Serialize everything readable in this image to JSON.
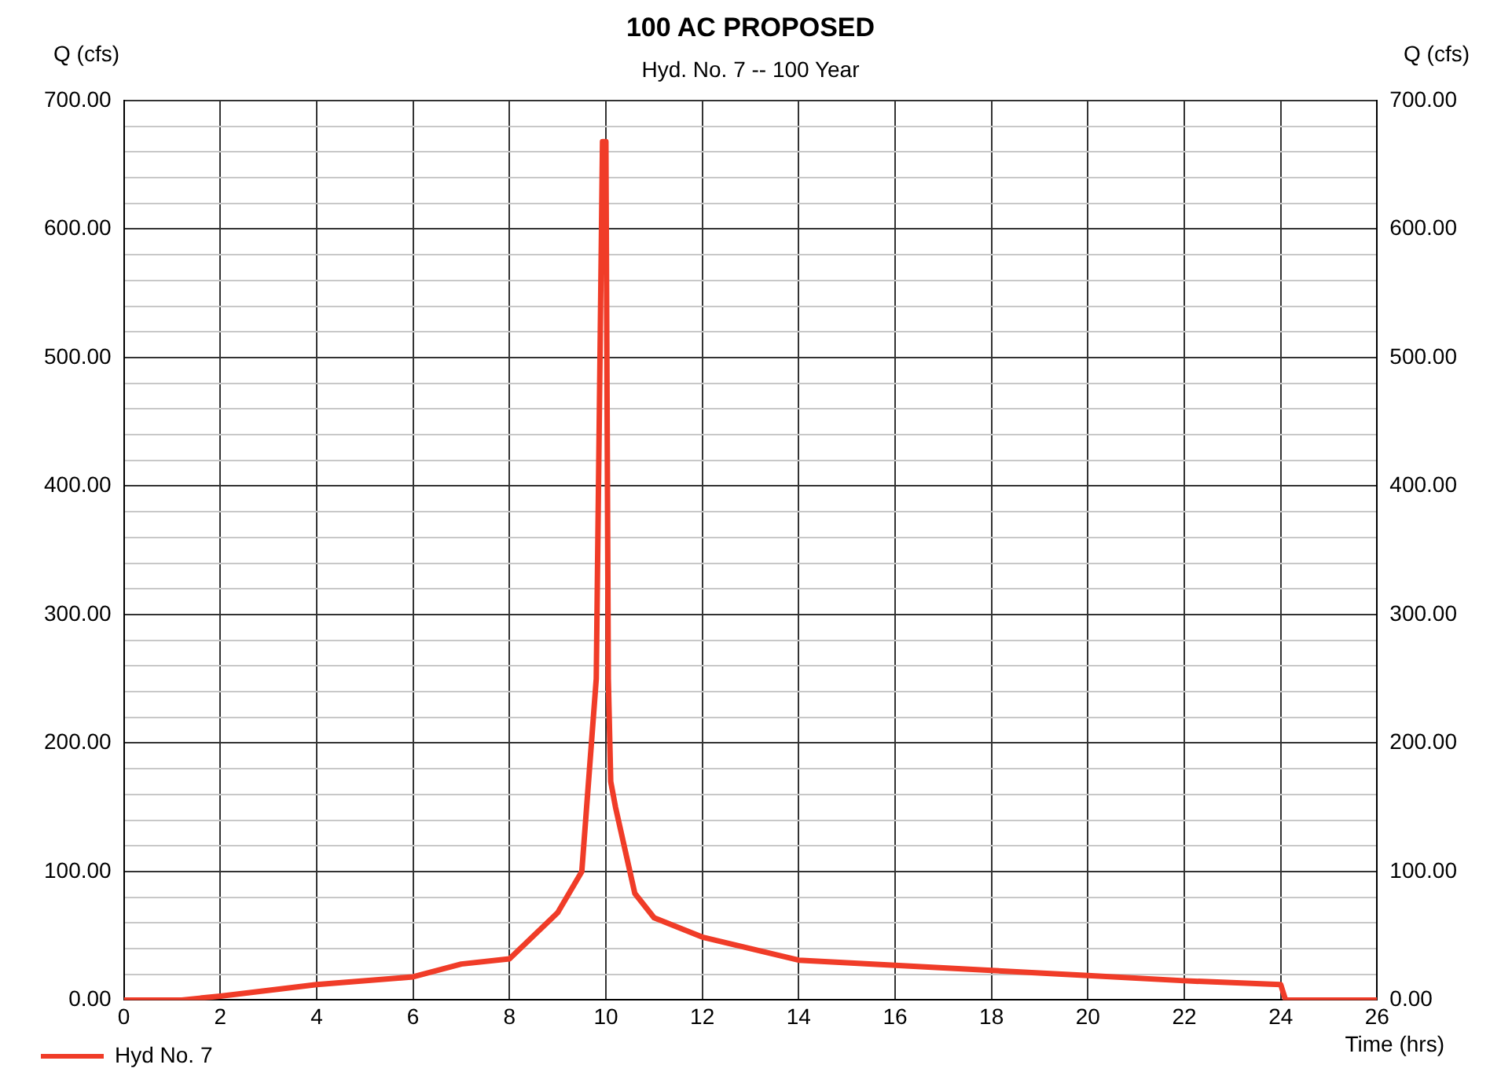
{
  "chart_data": {
    "type": "line",
    "title": "100 AC PROPOSED",
    "subtitle": "Hyd. No. 7 -- 100 Year",
    "xlabel": "Time (hrs)",
    "ylabel": "Q (cfs)",
    "y2label": "Q (cfs)",
    "series": [
      {
        "name": "Hyd No. 7",
        "color": "#f03c28",
        "x": [
          0,
          1.2,
          2,
          4,
          6,
          7,
          8,
          9,
          9.5,
          9.8,
          9.93,
          10.0,
          10.05,
          10.1,
          10.2,
          10.6,
          11,
          12,
          14,
          16,
          18,
          20,
          22,
          24,
          24.1,
          26
        ],
        "values": [
          0,
          0,
          3,
          12,
          18,
          28,
          32,
          68,
          100,
          250,
          668,
          668,
          250,
          170,
          150,
          83,
          64,
          49,
          31,
          27,
          23,
          19,
          15,
          12,
          0,
          0
        ]
      }
    ],
    "xlim": [
      0,
      26
    ],
    "xticks": [
      0,
      2,
      4,
      6,
      8,
      10,
      12,
      14,
      16,
      18,
      20,
      22,
      24,
      26
    ],
    "ylim": [
      0,
      700
    ],
    "yticks": [
      {
        "value": 0,
        "label": "0.00"
      },
      {
        "value": 20,
        "label": null
      },
      {
        "value": 40,
        "label": null
      },
      {
        "value": 60,
        "label": null
      },
      {
        "value": 80,
        "label": null
      },
      {
        "value": 100,
        "label": "100.00"
      },
      {
        "value": 120,
        "label": null
      },
      {
        "value": 140,
        "label": null
      },
      {
        "value": 160,
        "label": null
      },
      {
        "value": 180,
        "label": null
      },
      {
        "value": 200,
        "label": "200.00"
      },
      {
        "value": 220,
        "label": null
      },
      {
        "value": 240,
        "label": null
      },
      {
        "value": 260,
        "label": null
      },
      {
        "value": 280,
        "label": null
      },
      {
        "value": 300,
        "label": "300.00"
      },
      {
        "value": 320,
        "label": null
      },
      {
        "value": 340,
        "label": null
      },
      {
        "value": 360,
        "label": null
      },
      {
        "value": 380,
        "label": null
      },
      {
        "value": 400,
        "label": "400.00"
      },
      {
        "value": 420,
        "label": null
      },
      {
        "value": 440,
        "label": null
      },
      {
        "value": 460,
        "label": null
      },
      {
        "value": 480,
        "label": null
      },
      {
        "value": 500,
        "label": "500.00"
      },
      {
        "value": 520,
        "label": null
      },
      {
        "value": 540,
        "label": null
      },
      {
        "value": 560,
        "label": null
      },
      {
        "value": 580,
        "label": null
      },
      {
        "value": 600,
        "label": "600.00"
      },
      {
        "value": 620,
        "label": null
      },
      {
        "value": 640,
        "label": null
      },
      {
        "value": 660,
        "label": null
      },
      {
        "value": 680,
        "label": null
      },
      {
        "value": 700,
        "label": "700.00"
      }
    ],
    "y2lim": [
      0,
      700
    ],
    "y2ticks": [
      {
        "value": 0,
        "label": "0.00"
      },
      {
        "value": 100,
        "label": "100.00"
      },
      {
        "value": 200,
        "label": "200.00"
      },
      {
        "value": 300,
        "label": "300.00"
      },
      {
        "value": 400,
        "label": "400.00"
      },
      {
        "value": 500,
        "label": "500.00"
      },
      {
        "value": 600,
        "label": "600.00"
      },
      {
        "value": 700,
        "label": "700.00"
      }
    ],
    "grid": true,
    "legend": "bottom left",
    "marker": "none",
    "line_style": "solid"
  }
}
